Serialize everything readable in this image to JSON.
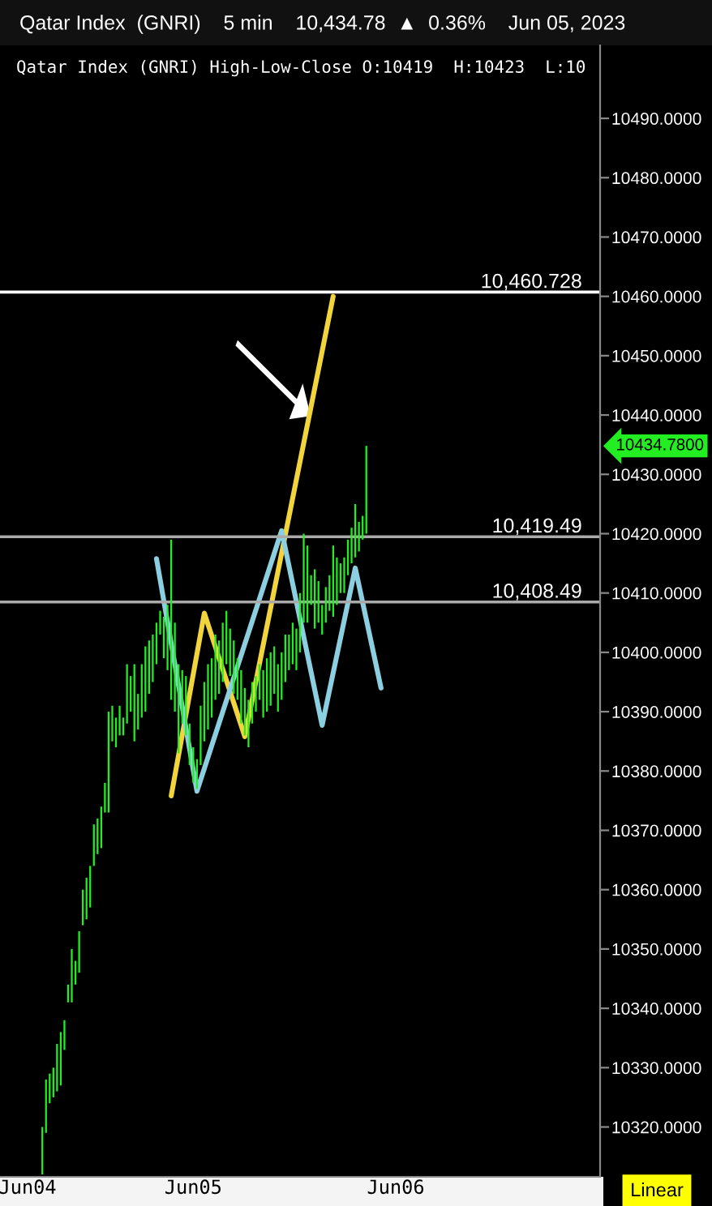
{
  "chart_data": {
    "type": "bar",
    "title": "Qatar Index  (GNRI)    5 min    10,434.78  ▲  0.36%    Jun 05, 2023",
    "subtitle": "Qatar Index (GNRI) High-Low-Close O:10419  H:10423  L:10",
    "categories": [
      null,
      null,
      null,
      null,
      null,
      null,
      null,
      "Jun04",
      null,
      null,
      null,
      null,
      null,
      null,
      null,
      null,
      null,
      null,
      null,
      null,
      null,
      null,
      null,
      null,
      null,
      null,
      null,
      null,
      null,
      null,
      null,
      null,
      null,
      null,
      null,
      null,
      null,
      null,
      null,
      null,
      null,
      null,
      null,
      null,
      null,
      null,
      null,
      null,
      null,
      null,
      null,
      null,
      "Jun05",
      null,
      null,
      null,
      null,
      null,
      null,
      null,
      null,
      null,
      null,
      null,
      null,
      null,
      null,
      null,
      null,
      null,
      null,
      null,
      null,
      null,
      null,
      null,
      null,
      null,
      null,
      null,
      null,
      null,
      null,
      null,
      null,
      null,
      null,
      null,
      null,
      null,
      null,
      null,
      null,
      null,
      null,
      null,
      null,
      null,
      null,
      null,
      null,
      null,
      null,
      null,
      null,
      null,
      null,
      "Jun06",
      null,
      null,
      null,
      null,
      null,
      null,
      null,
      null,
      null,
      null,
      null,
      null,
      null,
      null,
      null,
      null,
      null,
      null,
      null,
      null,
      null,
      null,
      null,
      null,
      null,
      null,
      null,
      null,
      null,
      null,
      null,
      null,
      null,
      null,
      null,
      null,
      null,
      null,
      null,
      null,
      null,
      null,
      null,
      null,
      null,
      null,
      null,
      null,
      null,
      null,
      null,
      null,
      null,
      null,
      null
    ],
    "series": [
      {
        "type": "bar",
        "color": "#22ee22",
        "base": [
          null,
          null,
          null,
          null,
          null,
          null,
          null,
          null,
          null,
          null,
          null,
          10312,
          10319,
          10324,
          10325,
          10326,
          10327,
          10333,
          10341,
          10341,
          10344,
          10346,
          10354,
          10355,
          10357,
          10364,
          10366,
          10367,
          10373,
          10373,
          10385,
          10384,
          10386,
          10386,
          10388,
          10390,
          10385,
          10387,
          10389,
          10390,
          10393,
          10395,
          10398,
          10403,
          10399,
          10397,
          10392,
          10390,
          10383,
          10388,
          10386,
          10381,
          10378,
          10377,
          10381,
          10385,
          10387,
          10389,
          10392,
          10393,
          10395,
          10398,
          10396,
          10393,
          10392,
          10388,
          10386,
          10384,
          10388,
          10390,
          10392,
          10389,
          10390,
          10391,
          10393,
          10390,
          10392,
          10395,
          10397,
          10398,
          10397,
          10400,
          10405,
          10405,
          10408,
          10404,
          10405,
          10403,
          10405,
          10407,
          10406,
          10408,
          10410,
          10410,
          10413,
          10415,
          10416,
          10417,
          10419,
          10420,
          null,
          null,
          null,
          null,
          null,
          null,
          null,
          null,
          null,
          null,
          null,
          null,
          null,
          null,
          null,
          null,
          null,
          null,
          null,
          null,
          null,
          null,
          null,
          null,
          null,
          null,
          null,
          null,
          null,
          null,
          null,
          null,
          null,
          null,
          null,
          null,
          null,
          null,
          null,
          null,
          null,
          null,
          null,
          null,
          null,
          null,
          null,
          null,
          null,
          null,
          null,
          null,
          null,
          null,
          null,
          null,
          null,
          null,
          null,
          null,
          null,
          null,
          null
        ],
        "values": [
          null,
          null,
          null,
          null,
          null,
          null,
          null,
          null,
          null,
          null,
          null,
          8,
          9,
          5,
          5,
          8,
          9,
          5,
          3,
          9,
          4,
          7,
          6,
          7,
          7,
          7,
          6,
          7,
          5,
          17,
          6,
          5,
          5,
          3,
          10,
          6,
          13,
          6,
          9,
          11,
          9,
          8,
          7,
          4,
          7,
          11,
          27,
          15,
          15,
          9,
          10,
          7,
          6,
          5,
          10,
          10,
          11,
          10,
          11,
          9,
          10,
          9,
          8,
          9,
          7,
          9,
          8,
          8,
          7,
          6,
          6,
          8,
          9,
          9,
          8,
          8,
          8,
          8,
          6,
          7,
          7,
          10,
          15,
          13,
          5,
          10,
          7,
          5,
          6,
          6,
          12,
          8,
          5,
          6,
          6,
          6,
          9,
          5,
          4,
          14.8,
          null,
          null,
          null,
          null,
          null,
          null,
          null,
          null,
          null,
          null,
          null,
          null,
          null,
          null,
          null,
          null,
          null,
          null,
          null,
          null,
          null,
          null,
          null,
          null,
          null,
          null,
          null,
          null,
          null,
          null,
          null,
          null,
          null,
          null,
          null,
          null,
          null,
          null,
          null,
          null,
          null,
          null,
          null,
          null,
          null,
          null,
          null,
          null,
          null,
          null,
          null,
          null,
          null,
          null,
          null,
          null,
          null,
          null,
          null,
          null,
          null,
          null,
          null
        ]
      },
      {
        "type": "line",
        "color": "#f2d43c",
        "values": [
          null,
          null,
          null,
          null,
          null,
          null,
          null,
          null,
          null,
          null,
          null,
          null,
          null,
          null,
          null,
          null,
          null,
          null,
          null,
          null,
          null,
          null,
          null,
          null,
          null,
          null,
          null,
          null,
          null,
          null,
          null,
          null,
          null,
          null,
          null,
          null,
          null,
          null,
          null,
          null,
          null,
          null,
          null,
          null,
          null,
          null,
          10375.8,
          null,
          null,
          null,
          null,
          null,
          null,
          null,
          null,
          10406.6,
          null,
          null,
          null,
          null,
          null,
          null,
          null,
          null,
          null,
          null,
          10385.8,
          null,
          null,
          null,
          null,
          null,
          null,
          null,
          null,
          null,
          null,
          null,
          null,
          null,
          null,
          null,
          null,
          null,
          null,
          null,
          null,
          null,
          null,
          null,
          10460,
          null,
          null,
          null,
          null,
          null,
          null,
          null,
          null,
          null,
          null,
          null,
          null,
          null,
          null,
          null,
          null,
          null,
          null,
          null,
          null,
          null,
          null,
          null,
          null,
          null,
          null,
          null,
          null,
          null,
          null,
          null,
          null,
          null,
          null,
          null,
          null,
          null,
          null,
          null,
          null,
          null,
          null,
          null,
          null,
          null,
          null,
          null,
          null,
          null,
          null,
          null,
          null,
          null,
          null,
          null,
          null,
          null,
          null,
          null,
          null,
          null,
          null,
          null,
          null,
          null,
          null,
          null,
          null,
          null,
          null,
          null,
          null
        ]
      },
      {
        "type": "line",
        "color": "#8ccfe0",
        "values": [
          null,
          null,
          null,
          null,
          null,
          null,
          null,
          null,
          null,
          null,
          null,
          null,
          null,
          null,
          null,
          null,
          null,
          null,
          null,
          null,
          null,
          null,
          null,
          null,
          null,
          null,
          null,
          null,
          null,
          null,
          null,
          null,
          null,
          null,
          null,
          null,
          null,
          null,
          null,
          null,
          null,
          null,
          10415.8,
          null,
          null,
          null,
          null,
          null,
          null,
          null,
          null,
          null,
          null,
          10376.6,
          null,
          null,
          null,
          null,
          null,
          null,
          null,
          null,
          null,
          null,
          null,
          null,
          null,
          null,
          null,
          null,
          null,
          null,
          null,
          null,
          null,
          null,
          10420.5,
          null,
          null,
          null,
          null,
          null,
          null,
          null,
          null,
          null,
          null,
          10387.7,
          null,
          null,
          null,
          null,
          null,
          null,
          null,
          null,
          10414.2,
          null,
          null,
          null,
          null,
          null,
          null,
          10394,
          null,
          null,
          null,
          null,
          null,
          null,
          null,
          null,
          null,
          null,
          null,
          null,
          null,
          null,
          null,
          null,
          null,
          null,
          null,
          null,
          null,
          null,
          null,
          null,
          null,
          null,
          null,
          null,
          null,
          null,
          null,
          null,
          null,
          null,
          null,
          null,
          null,
          null,
          null,
          null,
          null,
          null,
          null,
          null,
          null,
          null,
          null,
          null,
          null,
          null,
          null,
          null,
          null,
          null,
          null,
          null,
          null,
          null,
          null
        ]
      }
    ],
    "ylim": [
      10311.6,
      10502.3
    ],
    "yticks": [
      {
        "value": 10320,
        "label": "10320.0000"
      },
      {
        "value": 10330,
        "label": "10330.0000"
      },
      {
        "value": 10340,
        "label": "10340.0000"
      },
      {
        "value": 10350,
        "label": "10350.0000"
      },
      {
        "value": 10360,
        "label": "10360.0000"
      },
      {
        "value": 10370,
        "label": "10370.0000"
      },
      {
        "value": 10380,
        "label": "10380.0000"
      },
      {
        "value": 10390,
        "label": "10390.0000"
      },
      {
        "value": 10400,
        "label": "10400.0000"
      },
      {
        "value": 10410,
        "label": "10410.0000"
      },
      {
        "value": 10420,
        "label": "10420.0000"
      },
      {
        "value": 10430,
        "label": "10430.0000"
      },
      {
        "value": 10440,
        "label": "10440.0000"
      },
      {
        "value": 10450,
        "label": "10450.0000"
      },
      {
        "value": 10460,
        "label": "10460.0000"
      },
      {
        "value": 10470,
        "label": "10470.0000"
      },
      {
        "value": 10480,
        "label": "10480.0000"
      },
      {
        "value": 10490,
        "label": "10490.0000"
      }
    ],
    "ref_lines": [
      {
        "axis": "y",
        "value": 10460.728,
        "label": "10,460.728",
        "color": "#ffffff"
      },
      {
        "axis": "y",
        "value": 10419.49,
        "label": "10,419.49",
        "color": "#aaaaaa"
      },
      {
        "axis": "y",
        "value": 10408.49,
        "label": "10,408.49",
        "color": "#aaaaaa"
      }
    ],
    "annotations": [
      "10434.7800",
      "Linear"
    ],
    "grid": false,
    "legend": false
  }
}
